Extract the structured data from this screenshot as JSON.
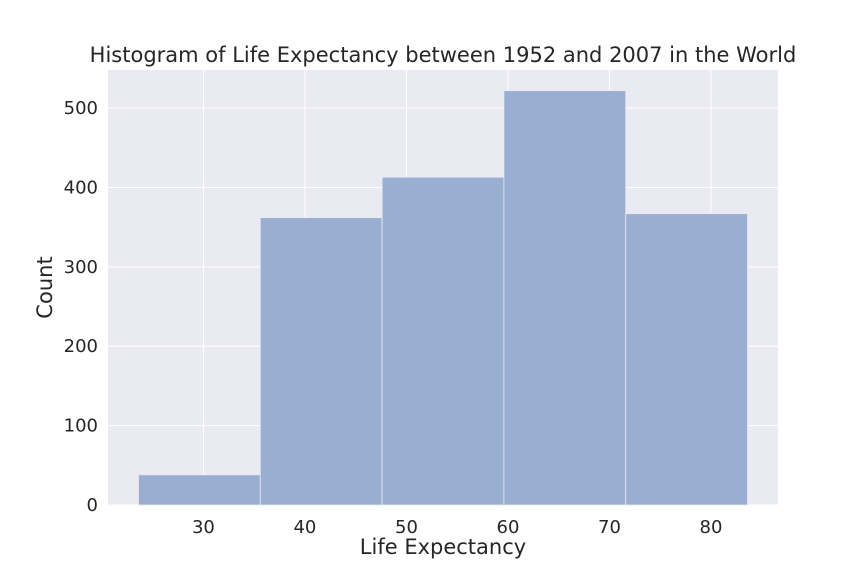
{
  "colors": {
    "plot_background": "#eaeaf2",
    "grid": "#ffffff",
    "bar_fill": "#9aaed1",
    "bar_edge": "#eaeaf2",
    "text": "#262626"
  },
  "chart_data": {
    "type": "bar",
    "title": "Histogram of Life Expectancy between 1952 and 2007 in the World",
    "xlabel": "Life Expectancy",
    "ylabel": "Count",
    "bins": [
      {
        "start": 23.6,
        "end": 35.6,
        "count": 38
      },
      {
        "start": 35.6,
        "end": 47.6,
        "count": 362
      },
      {
        "start": 47.6,
        "end": 59.6,
        "count": 413
      },
      {
        "start": 59.6,
        "end": 71.6,
        "count": 522
      },
      {
        "start": 71.6,
        "end": 83.6,
        "count": 367
      }
    ],
    "xlim": [
      20.6,
      86.6
    ],
    "ylim": [
      0,
      548
    ],
    "xticks": [
      30,
      40,
      50,
      60,
      70,
      80
    ],
    "yticks": [
      0,
      100,
      200,
      300,
      400,
      500
    ],
    "grid": true,
    "style": "seaborn darkgrid"
  }
}
